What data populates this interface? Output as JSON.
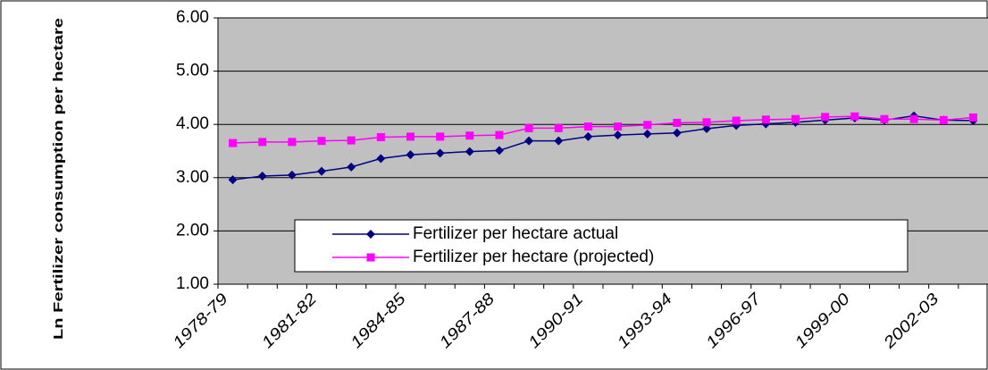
{
  "chart_data": {
    "type": "line",
    "y_label": "Ln Fertilizer consumption per hectare",
    "categories": [
      "1978-79",
      null,
      null,
      "1981-82",
      null,
      null,
      "1984-85",
      null,
      null,
      "1987-88",
      null,
      null,
      "1990-91",
      null,
      null,
      "1993-94",
      null,
      null,
      "1996-97",
      null,
      null,
      "1999-00",
      null,
      null,
      "2002-03",
      null
    ],
    "series": [
      {
        "name": "Fertilizer per hectare actual",
        "color": "#000080",
        "marker": "diamond",
        "values": [
          2.96,
          3.03,
          3.05,
          3.12,
          3.2,
          3.36,
          3.43,
          3.46,
          3.49,
          3.51,
          3.69,
          3.69,
          3.77,
          3.8,
          3.82,
          3.84,
          3.92,
          3.98,
          4.01,
          4.04,
          4.08,
          4.12,
          4.08,
          4.16,
          4.08,
          4.07
        ]
      },
      {
        "name": "Fertilizer per hectare (projected)",
        "color": "#ff00ff",
        "marker": "square",
        "values": [
          3.65,
          3.67,
          3.67,
          3.69,
          3.7,
          3.76,
          3.77,
          3.77,
          3.79,
          3.8,
          3.93,
          3.93,
          3.96,
          3.96,
          3.99,
          4.03,
          4.04,
          4.07,
          4.09,
          4.1,
          4.14,
          4.15,
          4.1,
          4.1,
          4.08,
          4.13
        ]
      }
    ],
    "ylim": [
      1,
      6
    ],
    "yticks": [
      {
        "value": 1,
        "label": "1.00"
      },
      {
        "value": 2,
        "label": "2.00"
      },
      {
        "value": 3,
        "label": "3.00"
      },
      {
        "value": 4,
        "label": "4.00"
      },
      {
        "value": 5,
        "label": "5.00"
      },
      {
        "value": 6,
        "label": "6.00"
      }
    ],
    "grid": true,
    "plot_background": "#c0c0c0"
  }
}
